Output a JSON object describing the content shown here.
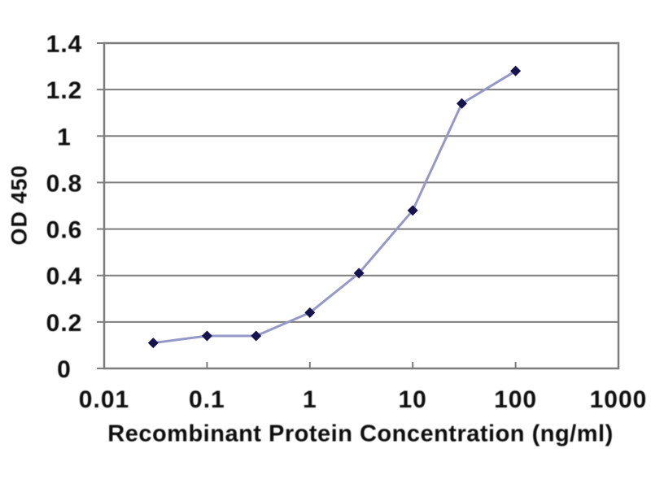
{
  "chart_data": {
    "type": "line",
    "x": [
      0.03,
      0.1,
      0.3,
      1,
      3,
      10,
      30,
      100
    ],
    "y": [
      0.11,
      0.14,
      0.14,
      0.24,
      0.41,
      0.68,
      1.14,
      1.28
    ],
    "xlabel": "Recombinant Protein Concentration (ng/ml)",
    "ylabel": "OD 450",
    "x_scale": "log",
    "y_scale": "linear",
    "xlim": [
      0.01,
      1000
    ],
    "ylim": [
      0,
      1.4
    ],
    "x_tick_labels": [
      "0.01",
      "0.1",
      "1",
      "10",
      "100",
      "1000"
    ],
    "y_tick_labels": [
      "0",
      "0.2",
      "0.4",
      "0.6",
      "0.8",
      "1",
      "1.2",
      "1.4"
    ],
    "grid": "horizontal-only",
    "legend": "none",
    "marker": "diamond",
    "colors": {
      "line": "#9599c8",
      "marker": "#17134e",
      "grid": "#7d7d7d",
      "frame": "#7d7d7d",
      "text": "#0d0d0d",
      "background": "#ffffff"
    }
  }
}
